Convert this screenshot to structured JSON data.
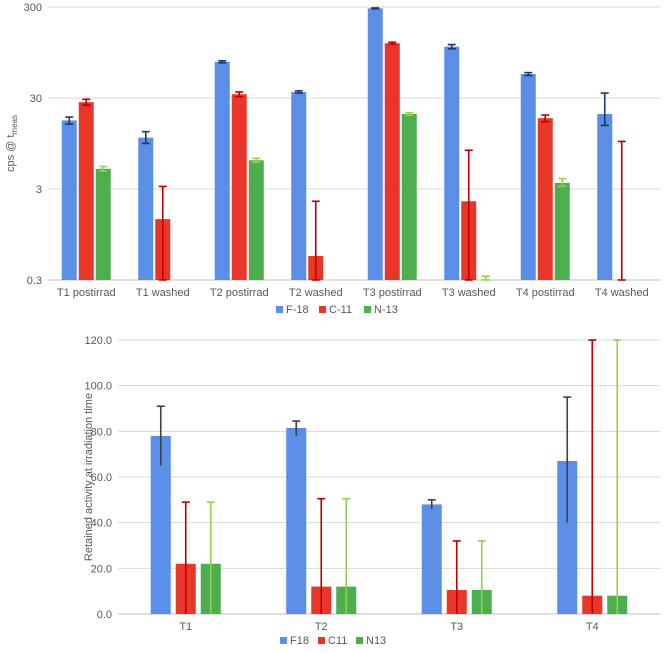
{
  "chart_data": [
    {
      "type": "bar",
      "scale": "log",
      "ylabel": "cps @ t",
      "ylabel_sub": "meas",
      "yticks": [
        "300",
        "30",
        "3",
        "0.3"
      ],
      "ytick_values": [
        300,
        30,
        3,
        0.3
      ],
      "ylim": [
        0.3,
        300
      ],
      "grid": true,
      "legend_position": "bottom",
      "categories": [
        "T1 postirrad",
        "T1 washed",
        "T2 postirrad",
        "T2 washed",
        "T3 postirrad",
        "T3 washed",
        "T4 postirrad",
        "T4 washed"
      ],
      "series": [
        {
          "name": "F-18",
          "color": "#5b8ee6",
          "error_color": "#1f3864",
          "values": [
            17,
            11,
            75,
            35,
            290,
            110,
            55,
            20
          ],
          "err_low": [
            15.5,
            9.5,
            73,
            34,
            287,
            104,
            53,
            15
          ],
          "err_high": [
            18.5,
            12.8,
            77,
            36,
            293,
            116,
            57,
            34
          ]
        },
        {
          "name": "C-11",
          "color": "#e8372a",
          "error_color": "#c00000",
          "values": [
            27,
            1.4,
            33,
            0.55,
            120,
            2.2,
            18,
            0.3
          ],
          "err_low": [
            25,
            0.3,
            31,
            0.3,
            117,
            0.3,
            16.5,
            0.3
          ],
          "err_high": [
            29,
            3.2,
            35,
            2.2,
            123,
            8,
            19.5,
            10
          ]
        },
        {
          "name": "N-13",
          "color": "#4cae4c",
          "error_color": "#92d050",
          "values": [
            5,
            0.3,
            6.2,
            0.3,
            20,
            0.3,
            3.5,
            0.3
          ],
          "err_low": [
            4.7,
            0.3,
            5.9,
            0.3,
            19.3,
            0.3,
            3.2,
            0.3
          ],
          "err_high": [
            5.3,
            0.3,
            6.5,
            0.3,
            20.7,
            0.33,
            3.9,
            0.3
          ]
        }
      ]
    },
    {
      "type": "bar",
      "ylabel": "Retained activity at irradiation time",
      "yticks": [
        "120.0",
        "100.0",
        "80.0",
        "60.0",
        "40.0",
        "20.0",
        "0.0"
      ],
      "ytick_values": [
        120,
        100,
        80,
        60,
        40,
        20,
        0
      ],
      "ylim": [
        0,
        120
      ],
      "grid": true,
      "legend_position": "bottom",
      "categories": [
        "T1",
        "T2",
        "T3",
        "T4"
      ],
      "series": [
        {
          "name": "F18",
          "color": "#5b8ee6",
          "error_color": "#404040",
          "values": [
            78,
            81.5,
            48,
            67
          ],
          "err_low": [
            65,
            78,
            46,
            40
          ],
          "err_high": [
            91,
            84.5,
            50,
            95
          ]
        },
        {
          "name": "C11",
          "color": "#e8372a",
          "error_color": "#c00000",
          "values": [
            22,
            12,
            10.5,
            8
          ],
          "err_low": [
            0,
            0,
            0,
            0
          ],
          "err_high": [
            49,
            50.5,
            32,
            120
          ]
        },
        {
          "name": "N13",
          "color": "#4cae4c",
          "error_color": "#92d050",
          "values": [
            22,
            12,
            10.5,
            8
          ],
          "err_low": [
            0,
            0,
            0,
            0
          ],
          "err_high": [
            49,
            50.5,
            32,
            120
          ]
        }
      ]
    }
  ]
}
